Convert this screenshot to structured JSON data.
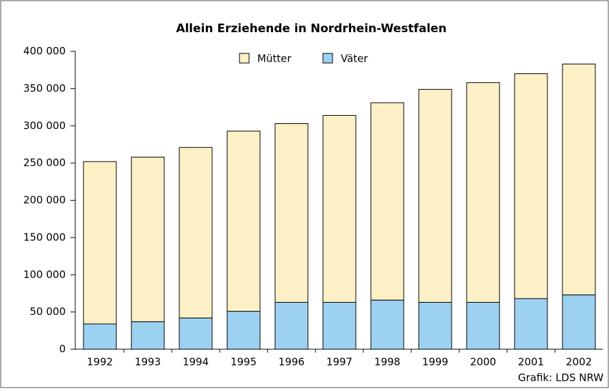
{
  "chart_data": {
    "type": "bar",
    "stacked": true,
    "title": "Allein Erziehende in Nordrhein-Westfalen",
    "categories": [
      "1992",
      "1993",
      "1994",
      "1995",
      "1996",
      "1997",
      "1998",
      "1999",
      "2000",
      "2001",
      "2002"
    ],
    "series": [
      {
        "name": "Väter",
        "color": "#9dd1f1",
        "values": [
          34000,
          37000,
          42000,
          51000,
          63000,
          63000,
          66000,
          63000,
          63000,
          68000,
          73000
        ]
      },
      {
        "name": "Mütter",
        "color": "#fdf0c6",
        "values": [
          218000,
          221000,
          229000,
          242000,
          240000,
          251000,
          265000,
          286000,
          295000,
          302000,
          310000
        ]
      }
    ],
    "ylim": [
      0,
      400000
    ],
    "yticks": [
      0,
      {
        "value": 50000,
        "label": "50 000"
      },
      {
        "value": 100000,
        "label": "100 000"
      },
      {
        "value": 150000,
        "label": "150 000"
      },
      {
        "value": 200000,
        "label": "200 000"
      },
      {
        "value": 250000,
        "label": "250 000"
      },
      {
        "value": 300000,
        "label": "300 000"
      },
      {
        "value": 350000,
        "label": "350 000"
      },
      {
        "value": 400000,
        "label": "400 000"
      }
    ],
    "grid": false,
    "source": "Grafik: LDS NRW"
  }
}
